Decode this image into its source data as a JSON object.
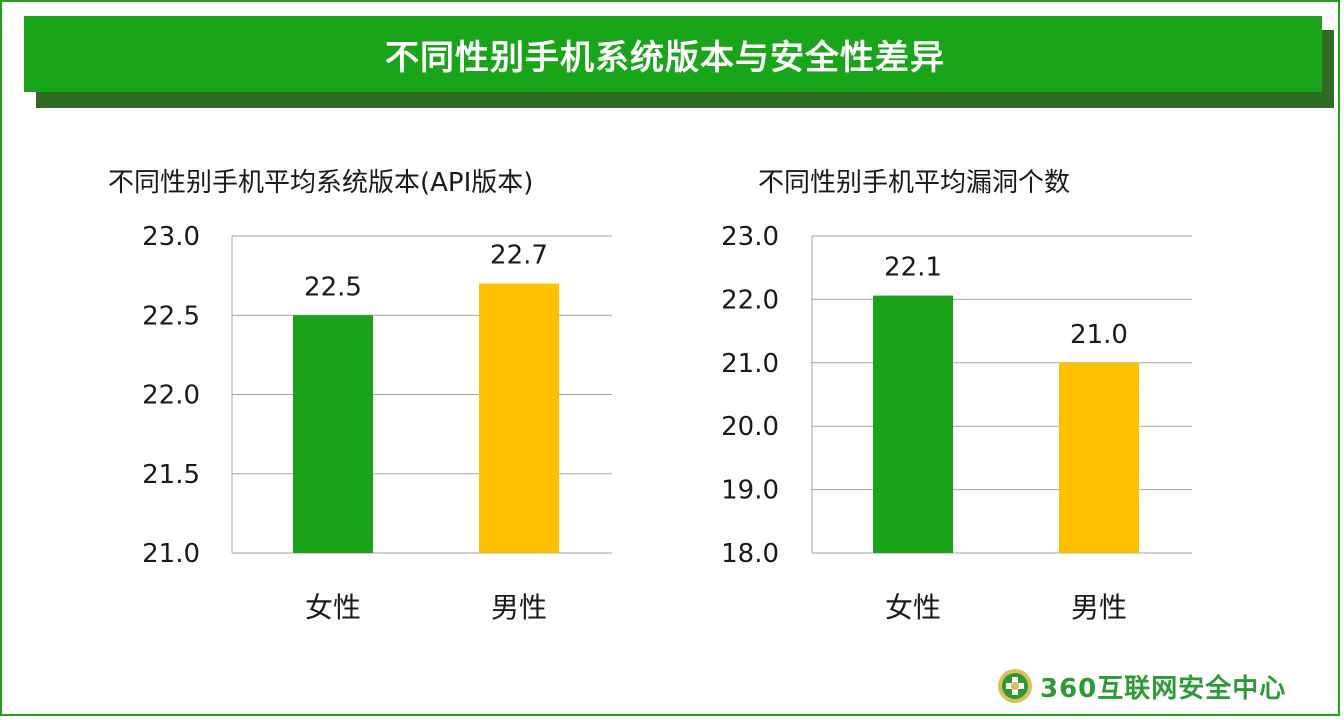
{
  "page": {
    "title": "不同性别手机系统版本与安全性差异",
    "brand": "360互联网安全中心"
  },
  "colors": {
    "banner": "#19a519",
    "banner_shadow": "#2f6b22",
    "female": "#1aa31a",
    "male": "#ffc000"
  },
  "chart_data": [
    {
      "type": "bar",
      "title": "不同性别手机平均系统版本(API版本)",
      "categories": [
        "女性",
        "男性"
      ],
      "values": [
        22.5,
        22.7
      ],
      "value_labels": [
        "22.5",
        "22.7"
      ],
      "ylim": [
        21.0,
        23.0
      ],
      "yticks": [
        "21.0",
        "21.5",
        "22.0",
        "22.5",
        "23.0"
      ],
      "grid": true,
      "colors": [
        "#1aa31a",
        "#ffc000"
      ]
    },
    {
      "type": "bar",
      "title": "不同性别手机平均漏洞个数",
      "categories": [
        "女性",
        "男性"
      ],
      "values": [
        22.06,
        21.0
      ],
      "value_labels": [
        "22.1",
        "21.0"
      ],
      "ylim": [
        18.0,
        23.0
      ],
      "yticks": [
        "18.0",
        "19.0",
        "20.0",
        "21.0",
        "22.0",
        "23.0"
      ],
      "grid": true,
      "colors": [
        "#1aa31a",
        "#ffc000"
      ]
    }
  ]
}
